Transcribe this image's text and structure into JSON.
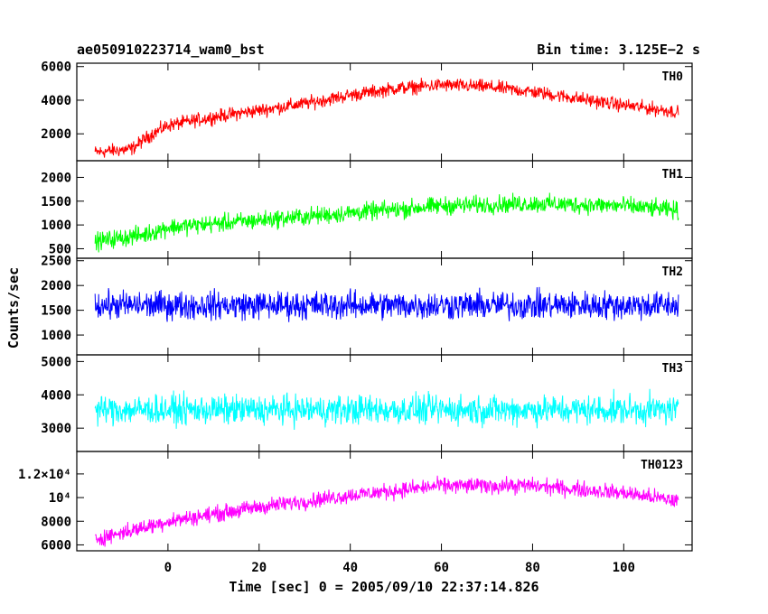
{
  "header": {
    "obs_label": "ae050910223714_wam0_bst",
    "bin_time": "Bin time: 3.125E−2 s"
  },
  "chart_data": {
    "type": "line",
    "ylabel": "Counts/sec",
    "xlabel": "Time [sec] 0 = 2005/09/10 22:37:14.826",
    "x_range": [
      -20,
      115
    ],
    "x_ticks": [
      {
        "v": 0,
        "label": "0"
      },
      {
        "v": 20,
        "label": "20"
      },
      {
        "v": 40,
        "label": "40"
      },
      {
        "v": 60,
        "label": "60"
      },
      {
        "v": 80,
        "label": "80"
      },
      {
        "v": 100,
        "label": "100"
      }
    ],
    "panels": [
      {
        "name": "TH0",
        "color": "#ff0000",
        "ylim": [
          400,
          6200
        ],
        "y_ticks": [
          {
            "v": 2000,
            "label": "2000"
          },
          {
            "v": 4000,
            "label": "4000"
          },
          {
            "v": 6000,
            "label": "6000"
          }
        ],
        "trend": [
          [
            -16,
            900
          ],
          [
            -8,
            1100
          ],
          [
            -4,
            1900
          ],
          [
            0,
            2500
          ],
          [
            10,
            3000
          ],
          [
            20,
            3400
          ],
          [
            30,
            3800
          ],
          [
            40,
            4300
          ],
          [
            50,
            4700
          ],
          [
            60,
            4900
          ],
          [
            70,
            4800
          ],
          [
            80,
            4500
          ],
          [
            90,
            4100
          ],
          [
            100,
            3700
          ],
          [
            112,
            3300
          ]
        ],
        "noise": 600
      },
      {
        "name": "TH1",
        "color": "#00ff00",
        "ylim": [
          300,
          2350
        ],
        "y_ticks": [
          {
            "v": 500,
            "label": "500"
          },
          {
            "v": 1000,
            "label": "1000"
          },
          {
            "v": 1500,
            "label": "1500"
          },
          {
            "v": 2000,
            "label": "2000"
          }
        ],
        "trend": [
          [
            -16,
            650
          ],
          [
            -5,
            800
          ],
          [
            0,
            950
          ],
          [
            20,
            1100
          ],
          [
            40,
            1250
          ],
          [
            60,
            1400
          ],
          [
            80,
            1450
          ],
          [
            100,
            1400
          ],
          [
            112,
            1300
          ]
        ],
        "noise": 280
      },
      {
        "name": "TH2",
        "color": "#0000ff",
        "ylim": [
          600,
          2550
        ],
        "y_ticks": [
          {
            "v": 1000,
            "label": "1000"
          },
          {
            "v": 1500,
            "label": "1500"
          },
          {
            "v": 2000,
            "label": "2000"
          },
          {
            "v": 2500,
            "label": "2500"
          }
        ],
        "trend": [
          [
            -16,
            1600
          ],
          [
            112,
            1600
          ]
        ],
        "noise": 420
      },
      {
        "name": "TH3",
        "color": "#00ffff",
        "ylim": [
          2300,
          5200
        ],
        "y_ticks": [
          {
            "v": 3000,
            "label": "3000"
          },
          {
            "v": 4000,
            "label": "4000"
          },
          {
            "v": 5000,
            "label": "5000"
          }
        ],
        "trend": [
          [
            -16,
            3550
          ],
          [
            112,
            3550
          ]
        ],
        "noise": 650
      },
      {
        "name": "TH0123",
        "color": "#ff00ff",
        "ylim": [
          5500,
          13900
        ],
        "y_ticks": [
          {
            "v": 6000,
            "label": "6000"
          },
          {
            "v": 8000,
            "label": "8000"
          },
          {
            "v": 10000,
            "label": "10⁴"
          },
          {
            "v": 12000,
            "label": "1.2×10⁴"
          }
        ],
        "trend": [
          [
            -16,
            6500
          ],
          [
            -5,
            7500
          ],
          [
            0,
            8000
          ],
          [
            20,
            9200
          ],
          [
            40,
            10200
          ],
          [
            60,
            11000
          ],
          [
            80,
            11000
          ],
          [
            100,
            10400
          ],
          [
            112,
            9700
          ]
        ],
        "noise": 1000
      }
    ]
  }
}
